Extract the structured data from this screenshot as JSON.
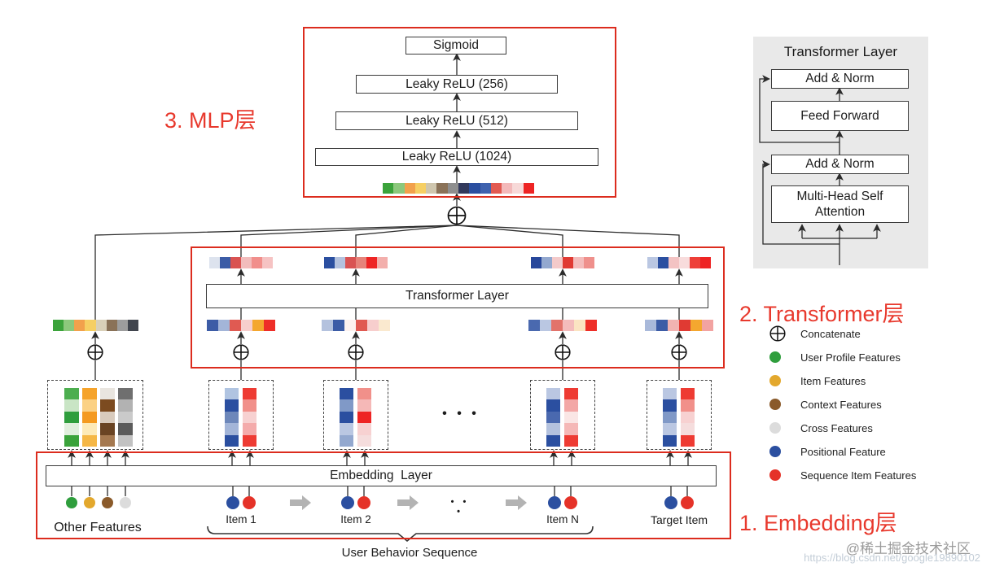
{
  "title_labels": {
    "mlp_section": "3. MLP层",
    "transformer_section": "2. Transformer层",
    "embedding_section": "1. Embedding层"
  },
  "mlp": {
    "sigmoid": "Sigmoid",
    "relu_256": "Leaky ReLU (256)",
    "relu_512": "Leaky ReLU (512)",
    "relu_1024": "Leaky ReLU (1024)"
  },
  "transformer": {
    "layer_label": "Transformer Layer"
  },
  "embedding": {
    "layer_label": "Embedding  Layer",
    "other_features": "Other Features",
    "item_1": "Item 1",
    "item_2": "Item 2",
    "item_n": "Item N",
    "target_item": "Target Item",
    "sequence_label": "User Behavior Sequence",
    "ellipsis": "• • •"
  },
  "detail_panel": {
    "title": "Transformer Layer",
    "add_norm_top": "Add & Norm",
    "feed_forward": "Feed Forward",
    "add_norm_bottom": "Add & Norm",
    "multi_head": "Multi-Head Self Attention"
  },
  "legend": {
    "items": [
      {
        "type": "concat",
        "color": "",
        "label": "Concatenate"
      },
      {
        "type": "dot",
        "color": "#2f9e3d",
        "label": "User Profile Features"
      },
      {
        "type": "dot",
        "color": "#e3a82d",
        "label": "Item Features"
      },
      {
        "type": "dot",
        "color": "#8a5a2a",
        "label": "Context Features"
      },
      {
        "type": "dot",
        "color": "#dcdcdc",
        "label": "Cross Features"
      },
      {
        "type": "dot",
        "color": "#2b4fa0",
        "label": "Positional Feature"
      },
      {
        "type": "dot",
        "color": "#e53228",
        "label": "Sequence Item Features"
      }
    ]
  },
  "watermark": {
    "handle": "@稀土掘金技术社区",
    "url": "https://blog.csdn.net/google19890102"
  },
  "colors": {
    "accent_red": "#e8392d",
    "box_border_red": "#dc2c1e",
    "wire": "#2b2b2b",
    "panel_bg": "#e9e9e9",
    "gray_arrow": "#b3b3b3"
  },
  "strips": {
    "mlp_concat": [
      "#3ba33b",
      "#8cc87c",
      "#f2a14c",
      "#f6cf63",
      "#cfc6ae",
      "#8a7258",
      "#8e8e8e",
      "#32395c",
      "#2b4fa0",
      "#3f62ae",
      "#e25a52",
      "#f3b9ba",
      "#f7d9d8",
      "#ee2424"
    ],
    "other_concat": [
      "#3ba33b",
      "#8cc87c",
      "#f2a14c",
      "#f6cf63",
      "#d9d0b9",
      "#8a7258",
      "#9d9d9d",
      "#41454e"
    ],
    "t_out_1": [
      "#dde3ee",
      "#3c5ca6",
      "#d95352",
      "#f2bcbc",
      "#f18f8c",
      "#f6c3c3"
    ],
    "t_out_2": [
      "#2b4fa0",
      "#b4c2de",
      "#d95352",
      "#e6837a",
      "#ee2424",
      "#f3afac"
    ],
    "t_out_3": [
      "#27479b",
      "#93a8cf",
      "#f4caca",
      "#e03a33",
      "#f4bcbc",
      "#ef908c"
    ],
    "t_out_4": [
      "#bac7e2",
      "#2b4fa0",
      "#f3c3c3",
      "#f8dcdc",
      "#ee3f38",
      "#ee2424"
    ],
    "t_in_1": [
      "#3c5ca6",
      "#a3b5d8",
      "#e05a52",
      "#f7cecd",
      "#f4a72f",
      "#ee2e28"
    ],
    "t_in_2": [
      "#b4c2de",
      "#3c5ca6",
      "#fdf2ef",
      "#e05a52",
      "#f7cecd",
      "#fae9cf"
    ],
    "t_in_3": [
      "#4a69af",
      "#bac7e2",
      "#e2736b",
      "#f4bcbc",
      "#fbe4c2",
      "#ee2e28"
    ],
    "t_in_4": [
      "#a9b9da",
      "#3c5ca6",
      "#f1b3b1",
      "#e03a33",
      "#f4a72f",
      "#f2a3a1"
    ]
  },
  "columns": {
    "other_green": [
      "#4cae4f",
      "#c9e5c5",
      "#2f9e3d",
      "#e1efdd",
      "#3ba33b"
    ],
    "other_orange": [
      "#f5a32b",
      "#fbd184",
      "#f49a20",
      "#fdeab8",
      "#f5b746"
    ],
    "other_brown": [
      "#e9e5df",
      "#7c4b20",
      "#d9cbbd",
      "#6a4423",
      "#a57950"
    ],
    "other_gray": [
      "#6f6f6f",
      "#b2b2b2",
      "#cacaca",
      "#5b5b5b",
      "#c2c2c2"
    ],
    "item1_blue": [
      "#b0c4e1",
      "#2b4fa0",
      "#6d87ba",
      "#a3b5d8",
      "#2b4fa0"
    ],
    "item1_red": [
      "#ee3b33",
      "#f1908a",
      "#f7d1d1",
      "#f4abab",
      "#ee3b33"
    ],
    "item2_blue": [
      "#2b4fa0",
      "#8099c7",
      "#2b4fa0",
      "#bac7e2",
      "#93a8cf"
    ],
    "item2_red": [
      "#f1908a",
      "#f5b8b7",
      "#ee2424",
      "#f7d1d1",
      "#f5dddd"
    ],
    "itemN_blue": [
      "#bac7e2",
      "#2b4fa0",
      "#4a69af",
      "#b4c2de",
      "#2b4fa0"
    ],
    "itemN_red": [
      "#ee3b33",
      "#f3a7a6",
      "#fae6e5",
      "#f5b8b7",
      "#ee3b33"
    ],
    "target_blue": [
      "#bac7e2",
      "#2b4fa0",
      "#8099c7",
      "#bac7e2",
      "#2b4fa0"
    ],
    "target_red": [
      "#ee3b33",
      "#f1908a",
      "#f7d1d1",
      "#f5dddd",
      "#ee3b33"
    ]
  }
}
